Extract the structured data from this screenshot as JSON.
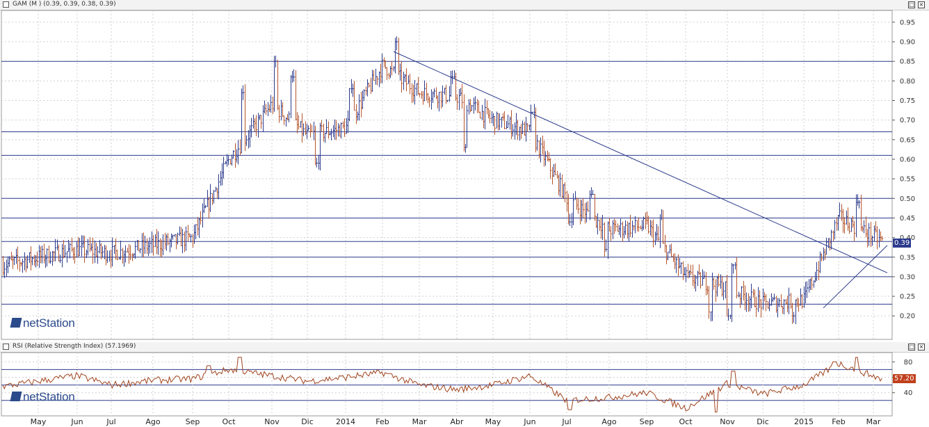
{
  "main_pane": {
    "title": "GAM (M ) (0.39, 0.39, 0.38, 0.39)",
    "last_value_label": "0.39",
    "accent_color": "#2b3a8c"
  },
  "rsi_pane": {
    "title": "RSI (Relative Strength Index) (57.1969)",
    "last_value_label": "57.20",
    "line_color": "#a0431c"
  },
  "logo": {
    "prefix": "net",
    "suffix": "Station"
  },
  "window_buttons": {
    "restore": "□",
    "close": "×"
  },
  "chart_data": [
    {
      "type": "ohlc",
      "series": [
        {
          "name": "GAM"
        }
      ],
      "ylim": [
        0.14,
        0.98
      ],
      "y_ticks": [
        0.2,
        0.25,
        0.3,
        0.35,
        0.4,
        0.45,
        0.5,
        0.55,
        0.6,
        0.65,
        0.7,
        0.75,
        0.8,
        0.85,
        0.9,
        0.95
      ],
      "x_labels": [
        "May",
        "Jun",
        "Jul",
        "Ago",
        "Sep",
        "Oct",
        "Nov",
        "Dic",
        "2014",
        "Feb",
        "Mar",
        "Abr",
        "May",
        "Jun",
        "Jul",
        "Ago",
        "Sep",
        "Oct",
        "Nov",
        "Dic",
        "2015",
        "Feb",
        "Mar"
      ],
      "horizontal_levels": [
        0.23,
        0.3,
        0.35,
        0.39,
        0.45,
        0.5,
        0.61,
        0.67,
        0.85
      ],
      "trendlines": [
        {
          "from": [
            "Feb 2014",
            0.875
          ],
          "to": [
            "Mar 2015",
            0.31
          ]
        },
        {
          "from": [
            "Ene 2015",
            0.22
          ],
          "to": [
            "Mar 2015",
            0.38
          ]
        }
      ],
      "close_path": [
        [
          "Apr 2013",
          0.33
        ],
        [
          "May 2013",
          0.35
        ],
        [
          "Jun 2013",
          0.37
        ],
        [
          "Jul 2013",
          0.36
        ],
        [
          "Ago 2013",
          0.38
        ],
        [
          "Sep 2013",
          0.4
        ],
        [
          "Oct 2013",
          0.6
        ],
        [
          "Nov 2013",
          0.74
        ],
        [
          "Dic 2013",
          0.66
        ],
        [
          "Ene 2014",
          0.68
        ],
        [
          "Feb 2014",
          0.84
        ],
        [
          "Mar 2014",
          0.77
        ],
        [
          "Abr 2014",
          0.76
        ],
        [
          "May 2014",
          0.7
        ],
        [
          "Jun 2014",
          0.67
        ],
        [
          "Jul 2014",
          0.5
        ],
        [
          "Ago 2014",
          0.42
        ],
        [
          "Sep 2014",
          0.43
        ],
        [
          "Oct 2014",
          0.3
        ],
        [
          "Nov 2014",
          0.27
        ],
        [
          "Dic 2014",
          0.23
        ],
        [
          "Ene 2015",
          0.24
        ],
        [
          "Feb 2015",
          0.45
        ],
        [
          "Mar 2015",
          0.39
        ]
      ],
      "last_value": 0.39
    },
    {
      "type": "line",
      "series": [
        {
          "name": "RSI"
        }
      ],
      "ylim": [
        10,
        92
      ],
      "y_ticks": [
        40,
        60,
        80
      ],
      "levels": [
        30,
        50,
        70
      ],
      "values_by_month": [
        48,
        55,
        62,
        50,
        56,
        58,
        70,
        62,
        55,
        60,
        66,
        50,
        44,
        50,
        62,
        30,
        34,
        40,
        20,
        52,
        38,
        50,
        78,
        57
      ],
      "last_value": 57.2
    }
  ]
}
